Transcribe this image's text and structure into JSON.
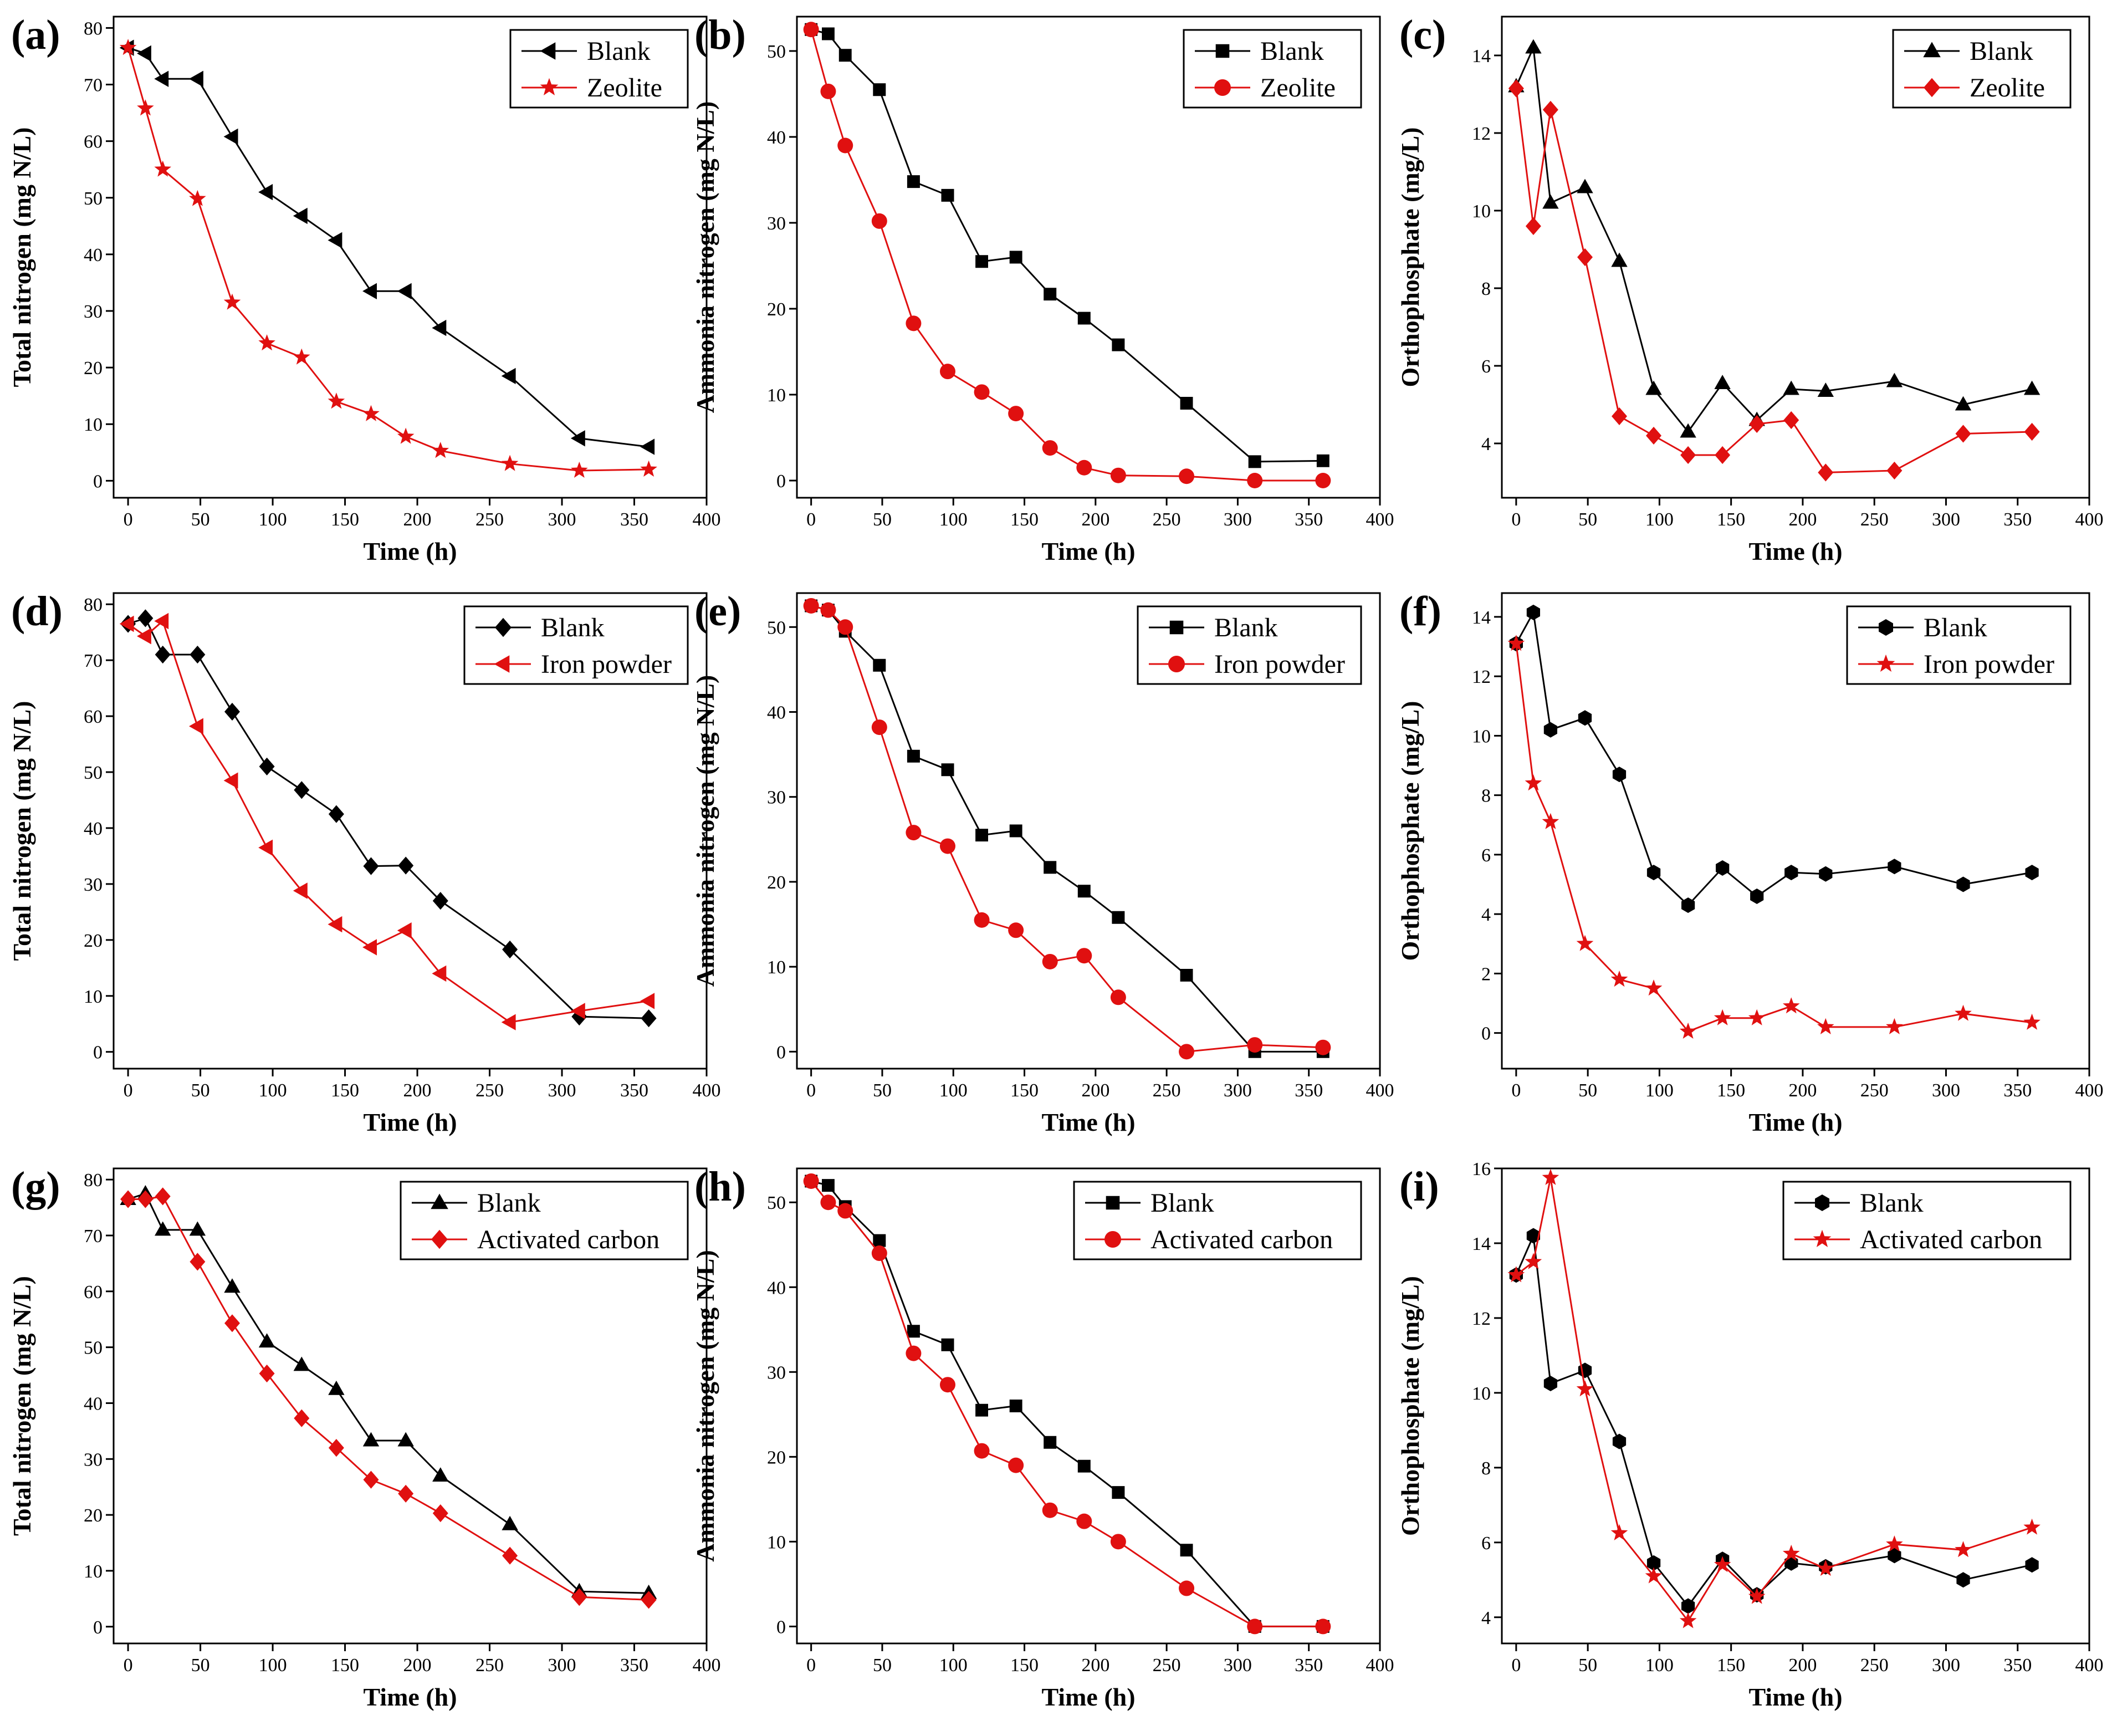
{
  "figure": {
    "background": "#ffffff"
  },
  "colors": {
    "blank": "#000000",
    "treated": "#e01010"
  },
  "x_values": [
    0,
    12,
    24,
    48,
    72,
    96,
    120,
    144,
    168,
    192,
    216,
    264,
    312,
    360
  ],
  "chart_data": [
    {
      "panel": "(a)",
      "type": "line",
      "xlabel": "Time (h)",
      "ylabel": "Total nitrogen (mg N/L)",
      "xlim": [
        -10,
        400
      ],
      "ylim": [
        -3,
        82
      ],
      "xticks": [
        0,
        50,
        100,
        150,
        200,
        250,
        300,
        350,
        400
      ],
      "yticks": [
        0,
        10,
        20,
        30,
        40,
        50,
        60,
        70,
        80
      ],
      "legend_pos": "top-right",
      "series": [
        {
          "name": "Blank",
          "color": "#000000",
          "marker": "triangle-left",
          "values": [
            76.5,
            75.5,
            71.0,
            71.0,
            60.8,
            51.0,
            46.8,
            42.5,
            33.5,
            33.5,
            27.0,
            18.5,
            7.5,
            6.0
          ]
        },
        {
          "name": "Zeolite",
          "color": "#e01010",
          "marker": "star",
          "values": [
            76.5,
            65.8,
            55.0,
            49.8,
            31.5,
            24.3,
            21.8,
            14.0,
            11.8,
            7.8,
            5.3,
            3.0,
            1.8,
            2.0
          ]
        }
      ]
    },
    {
      "panel": "(b)",
      "type": "line",
      "xlabel": "Time (h)",
      "ylabel": "Ammonia nitrogen (mg N/L)",
      "xlim": [
        -10,
        400
      ],
      "ylim": [
        -2,
        54
      ],
      "xticks": [
        0,
        50,
        100,
        150,
        200,
        250,
        300,
        350,
        400
      ],
      "yticks": [
        0,
        10,
        20,
        30,
        40,
        50
      ],
      "legend_pos": "top-right",
      "series": [
        {
          "name": "Blank",
          "color": "#000000",
          "marker": "square",
          "values": [
            52.5,
            52.0,
            49.5,
            45.5,
            34.8,
            33.2,
            25.5,
            26.0,
            21.7,
            18.9,
            15.8,
            9.0,
            2.2,
            2.3
          ]
        },
        {
          "name": "Zeolite",
          "color": "#e01010",
          "marker": "circle",
          "values": [
            52.5,
            45.3,
            39.0,
            30.2,
            18.3,
            12.7,
            10.3,
            7.8,
            3.8,
            1.5,
            0.6,
            0.5,
            0.0,
            0.0
          ]
        }
      ]
    },
    {
      "panel": "(c)",
      "type": "line",
      "xlabel": "Time (h)",
      "ylabel": "Orthophosphate (mg/L)",
      "xlim": [
        -10,
        400
      ],
      "ylim": [
        2.6,
        15
      ],
      "xticks": [
        0,
        50,
        100,
        150,
        200,
        250,
        300,
        350,
        400
      ],
      "yticks": [
        4,
        6,
        8,
        10,
        12,
        14
      ],
      "legend_pos": "top-right",
      "series": [
        {
          "name": "Blank",
          "color": "#000000",
          "marker": "triangle-up",
          "values": [
            13.2,
            14.2,
            10.2,
            10.6,
            8.7,
            5.4,
            4.3,
            5.55,
            4.6,
            5.4,
            5.35,
            5.6,
            5.0,
            5.4
          ]
        },
        {
          "name": "Zeolite",
          "color": "#e01010",
          "marker": "diamond",
          "values": [
            13.15,
            9.6,
            12.6,
            8.8,
            4.7,
            4.2,
            3.7,
            3.7,
            4.5,
            4.6,
            3.25,
            3.3,
            4.25,
            4.3
          ]
        }
      ]
    },
    {
      "panel": "(d)",
      "type": "line",
      "xlabel": "Time (h)",
      "ylabel": "Total nitrogen (mg N/L)",
      "xlim": [
        -10,
        400
      ],
      "ylim": [
        -3,
        82
      ],
      "xticks": [
        0,
        50,
        100,
        150,
        200,
        250,
        300,
        350,
        400
      ],
      "yticks": [
        0,
        10,
        20,
        30,
        40,
        50,
        60,
        70,
        80
      ],
      "legend_pos": "top-right",
      "series": [
        {
          "name": "Blank",
          "color": "#000000",
          "marker": "diamond",
          "values": [
            76.5,
            77.5,
            71.0,
            71.0,
            60.8,
            51.0,
            46.8,
            42.5,
            33.2,
            33.3,
            27.0,
            18.3,
            6.3,
            6.0
          ]
        },
        {
          "name": "Iron powder",
          "color": "#e01010",
          "marker": "triangle-left",
          "values": [
            76.5,
            74.3,
            77.0,
            58.2,
            48.5,
            36.5,
            28.8,
            22.8,
            18.7,
            21.7,
            14.0,
            5.3,
            7.3,
            9.1
          ]
        }
      ]
    },
    {
      "panel": "(e)",
      "type": "line",
      "xlabel": "Time (h)",
      "ylabel": "Ammonia nitrogen (mg N/L)",
      "xlim": [
        -10,
        400
      ],
      "ylim": [
        -2,
        54
      ],
      "xticks": [
        0,
        50,
        100,
        150,
        200,
        250,
        300,
        350,
        400
      ],
      "yticks": [
        0,
        10,
        20,
        30,
        40,
        50
      ],
      "legend_pos": "top-right",
      "series": [
        {
          "name": "Blank",
          "color": "#000000",
          "marker": "square",
          "values": [
            52.5,
            52.0,
            49.5,
            45.5,
            34.8,
            33.2,
            25.5,
            26.0,
            21.7,
            18.9,
            15.8,
            9.0,
            0.0,
            0.0
          ]
        },
        {
          "name": "Iron powder",
          "color": "#e01010",
          "marker": "circle",
          "values": [
            52.5,
            52.0,
            50.0,
            38.2,
            25.8,
            24.2,
            15.5,
            14.3,
            10.6,
            11.3,
            6.4,
            0.0,
            0.8,
            0.5
          ]
        }
      ]
    },
    {
      "panel": "(f)",
      "type": "line",
      "xlabel": "Time (h)",
      "ylabel": "Orthophosphate (mg/L)",
      "xlim": [
        -10,
        400
      ],
      "ylim": [
        -1.2,
        14.8
      ],
      "xticks": [
        0,
        50,
        100,
        150,
        200,
        250,
        300,
        350,
        400
      ],
      "yticks": [
        0,
        2,
        4,
        6,
        8,
        10,
        12,
        14
      ],
      "legend_pos": "top-right",
      "series": [
        {
          "name": "Blank",
          "color": "#000000",
          "marker": "hexagon",
          "values": [
            13.1,
            14.15,
            10.2,
            10.6,
            8.7,
            5.4,
            4.3,
            5.55,
            4.6,
            5.4,
            5.35,
            5.6,
            5.0,
            5.4
          ]
        },
        {
          "name": "Iron powder",
          "color": "#e01010",
          "marker": "star",
          "values": [
            13.1,
            8.4,
            7.1,
            3.0,
            1.8,
            1.5,
            0.05,
            0.5,
            0.5,
            0.9,
            0.2,
            0.2,
            0.65,
            0.35
          ]
        }
      ]
    },
    {
      "panel": "(g)",
      "type": "line",
      "xlabel": "Time (h)",
      "ylabel": "Total nitrogen (mg N/L)",
      "xlim": [
        -10,
        400
      ],
      "ylim": [
        -3,
        82
      ],
      "xticks": [
        0,
        50,
        100,
        150,
        200,
        250,
        300,
        350,
        400
      ],
      "yticks": [
        0,
        10,
        20,
        30,
        40,
        50,
        60,
        70,
        80
      ],
      "legend_pos": "top-right",
      "series": [
        {
          "name": "Blank",
          "color": "#000000",
          "marker": "triangle-up",
          "values": [
            76.5,
            77.5,
            71.0,
            71.0,
            60.8,
            51.0,
            46.8,
            42.5,
            33.3,
            33.3,
            27.0,
            18.3,
            6.3,
            6.0
          ]
        },
        {
          "name": "Activated carbon",
          "color": "#e01010",
          "marker": "diamond",
          "values": [
            76.5,
            76.5,
            77.0,
            65.3,
            54.3,
            45.3,
            37.3,
            32.0,
            26.3,
            23.8,
            20.3,
            12.7,
            5.3,
            4.8
          ]
        }
      ]
    },
    {
      "panel": "(h)",
      "type": "line",
      "xlabel": "Time (h)",
      "ylabel": "Ammonia nitrogen (mg N/L)",
      "xlim": [
        -10,
        400
      ],
      "ylim": [
        -2,
        54
      ],
      "xticks": [
        0,
        50,
        100,
        150,
        200,
        250,
        300,
        350,
        400
      ],
      "yticks": [
        0,
        10,
        20,
        30,
        40,
        50
      ],
      "legend_pos": "top-right",
      "series": [
        {
          "name": "Blank",
          "color": "#000000",
          "marker": "square",
          "values": [
            52.5,
            52.0,
            49.5,
            45.5,
            34.8,
            33.2,
            25.5,
            26.0,
            21.7,
            18.9,
            15.8,
            9.0,
            0.0,
            0.0
          ]
        },
        {
          "name": "Activated carbon",
          "color": "#e01010",
          "marker": "circle",
          "values": [
            52.5,
            50.0,
            49.0,
            44.0,
            32.2,
            28.5,
            20.7,
            19.0,
            13.7,
            12.4,
            10.0,
            4.5,
            0.0,
            0.0
          ]
        }
      ]
    },
    {
      "panel": "(i)",
      "type": "line",
      "xlabel": "Time (h)",
      "ylabel": "Orthophosphate (mg/L)",
      "xlim": [
        -10,
        400
      ],
      "ylim": [
        3.3,
        16
      ],
      "xticks": [
        0,
        50,
        100,
        150,
        200,
        250,
        300,
        350,
        400
      ],
      "yticks": [
        4,
        6,
        8,
        10,
        12,
        14,
        16
      ],
      "legend_pos": "top-right",
      "series": [
        {
          "name": "Blank",
          "color": "#000000",
          "marker": "hexagon",
          "values": [
            13.15,
            14.2,
            10.25,
            10.6,
            8.7,
            5.45,
            4.3,
            5.55,
            4.6,
            5.45,
            5.35,
            5.65,
            5.0,
            5.4
          ]
        },
        {
          "name": "Activated carbon",
          "color": "#e01010",
          "marker": "star",
          "values": [
            13.15,
            13.5,
            15.75,
            10.1,
            6.25,
            5.1,
            3.9,
            5.4,
            4.55,
            5.7,
            5.3,
            5.95,
            5.8,
            6.4
          ]
        }
      ]
    }
  ]
}
